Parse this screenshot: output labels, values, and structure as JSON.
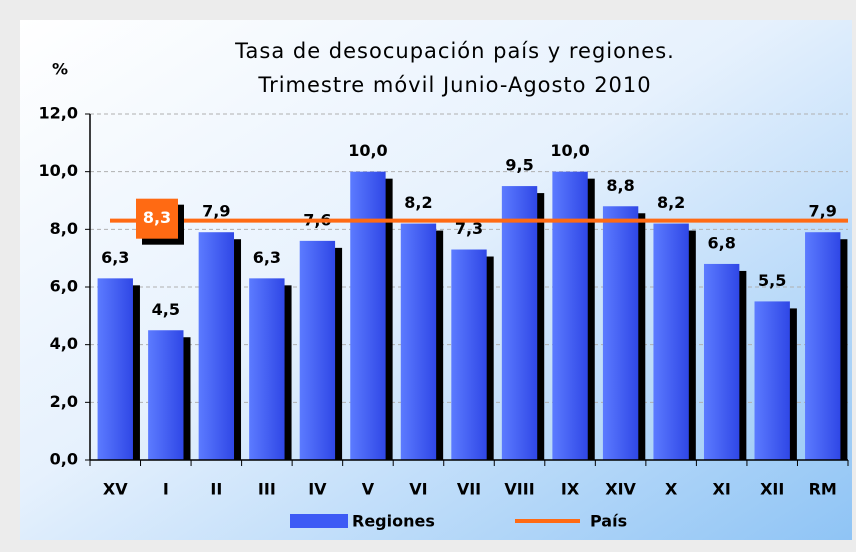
{
  "chart_data": {
    "type": "bar",
    "title": [
      "Tasa de desocupación país y regiones.",
      "Trimestre móvil Junio-Agosto 2010"
    ],
    "y_label": "%",
    "categories": [
      "XV",
      "I",
      "II",
      "III",
      "IV",
      "V",
      "VI",
      "VII",
      "VIII",
      "IX",
      "XIV",
      "X",
      "XI",
      "XII",
      "RM"
    ],
    "series": [
      {
        "name": "Regiones",
        "color": "#3d5af5",
        "values": [
          6.3,
          4.5,
          7.9,
          6.3,
          7.6,
          10.0,
          8.2,
          7.3,
          9.5,
          10.0,
          8.8,
          8.2,
          6.8,
          5.5,
          7.9
        ],
        "value_labels": [
          "6,3",
          "4,5",
          "7,9",
          "6,3",
          "7,6",
          "10,0",
          "8,2",
          "7,3",
          "9,5",
          "10,0",
          "8,8",
          "8,2",
          "6,8",
          "5,5",
          "7,9"
        ]
      },
      {
        "name": "País",
        "color": "#ff6a13",
        "value": 8.3,
        "value_label": "8,3"
      }
    ],
    "ylim": [
      0,
      12
    ],
    "yticks": [
      {
        "value": 0,
        "label": "0,0"
      },
      {
        "value": 2,
        "label": "2,0"
      },
      {
        "value": 4,
        "label": "4,0"
      },
      {
        "value": 6,
        "label": "6,0"
      },
      {
        "value": 8,
        "label": "8,0"
      },
      {
        "value": 10,
        "label": "10,0"
      },
      {
        "value": 12,
        "label": "12,0"
      }
    ],
    "grid": true
  }
}
